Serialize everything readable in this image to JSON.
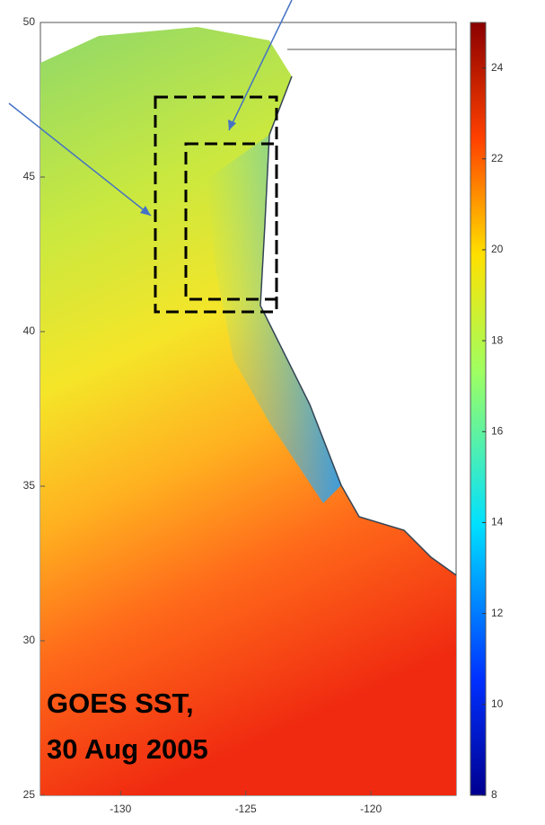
{
  "map": {
    "ylim": [
      25,
      50
    ],
    "yticks": [
      25,
      30,
      35,
      40,
      45,
      50
    ],
    "xlim": [
      -133.2,
      -116.6
    ],
    "xticks": [
      -130,
      -125,
      -120
    ],
    "colorbar": {
      "lim": [
        8,
        25
      ],
      "ticks": [
        8,
        10,
        12,
        14,
        16,
        18,
        20,
        22,
        24
      ]
    },
    "annotation": [
      "GOES SST,",
      "30 Aug 2005"
    ]
  }
}
